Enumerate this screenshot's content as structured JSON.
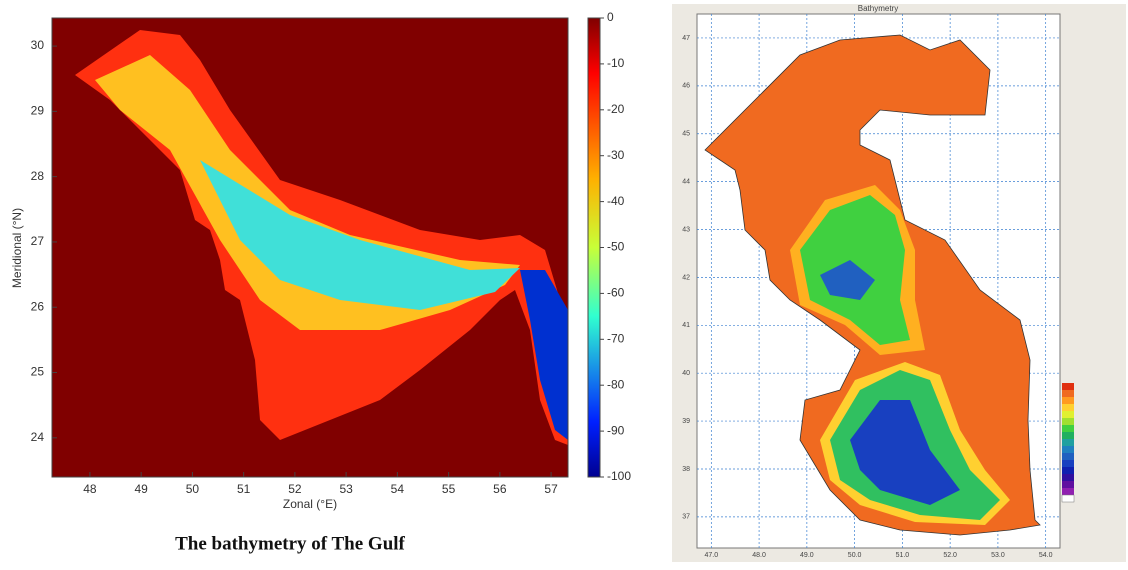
{
  "left_map": {
    "xlabel": "Zonal (°E)",
    "ylabel": "Meridional (°N)",
    "xlim": [
      47.26,
      57.33
    ],
    "ylim": [
      23.4,
      30.43
    ],
    "xticks": [
      48,
      49,
      50,
      51,
      52,
      53,
      54,
      55,
      56,
      57
    ],
    "yticks": [
      24,
      25,
      26,
      27,
      28,
      29,
      30
    ],
    "colorbar": {
      "lim": [
        -100,
        0
      ],
      "ticks": [
        0,
        -10,
        -20,
        -30,
        -40,
        -50,
        -60,
        -70,
        -80,
        -90,
        -100
      ]
    },
    "caption": "The bathymetry of The Gulf"
  },
  "right_map": {
    "title": "Bathymetry",
    "xlim": [
      46.7,
      54.3
    ],
    "ylim": [
      36.35,
      47.5
    ],
    "xticks": [
      {
        "value": 47,
        "label": "47.0"
      },
      {
        "value": 48,
        "label": "48.0"
      },
      {
        "value": 49,
        "label": "49.0"
      },
      {
        "value": 50,
        "label": "50.0"
      },
      {
        "value": 51,
        "label": "51.0"
      },
      {
        "value": 52,
        "label": "52.0"
      },
      {
        "value": 53,
        "label": "53.0"
      },
      {
        "value": 54,
        "label": "54.0"
      }
    ],
    "yticks": [
      37,
      38,
      39,
      40,
      41,
      42,
      43,
      44,
      45,
      46,
      47
    ]
  }
}
